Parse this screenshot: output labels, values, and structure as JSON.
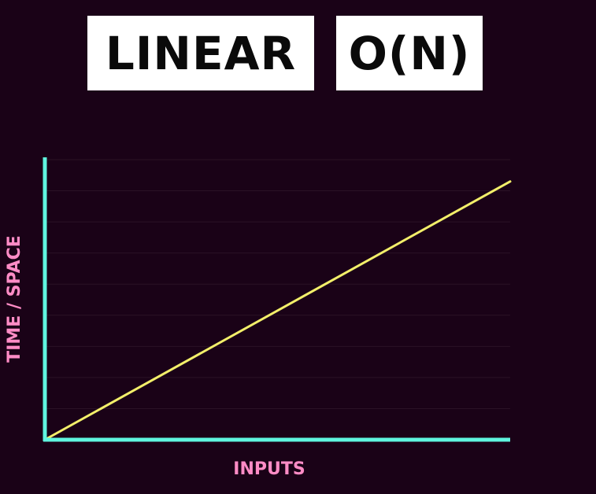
{
  "header": {
    "title": "LINEAR",
    "complexity": "O(N)"
  },
  "colors": {
    "background": "#1a0217",
    "axis": "#5ff5df",
    "line": "#f3ef6a",
    "label": "#ff8cc6",
    "grid": "#2a1226"
  },
  "chart_data": {
    "type": "line",
    "title": "",
    "xlabel": "INPUTS",
    "ylabel": "TIME / SPACE",
    "xlim": [
      0,
      10
    ],
    "ylim": [
      0,
      9
    ],
    "grid": true,
    "series": [
      {
        "x": [
          0,
          10
        ],
        "y": [
          0,
          8.3
        ]
      }
    ]
  }
}
